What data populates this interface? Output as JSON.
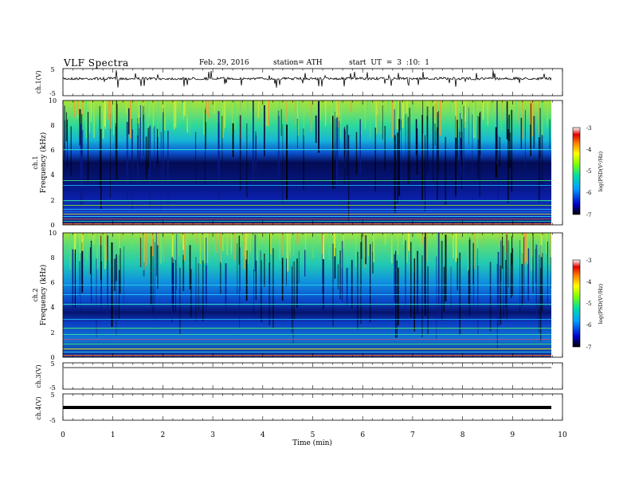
{
  "header": {
    "title": "VLF  Spectra",
    "date": "Feb. 29, 2016",
    "station": "station= ATH",
    "start": "start  UT =  3 :10: 1"
  },
  "panels": {
    "ch1": {
      "ylabel": "ch.1(V)",
      "ticks": [
        "5",
        "-5"
      ]
    },
    "spec1": {
      "ylabel_top": "ch.1",
      "ylabel": "Frequency  (kHz)",
      "ticks": [
        "0",
        "2",
        "4",
        "6",
        "8",
        "10"
      ]
    },
    "spec2": {
      "ylabel_top": "ch.2",
      "ylabel": "Frequency  (kHz)",
      "ticks": [
        "0",
        "2",
        "4",
        "6",
        "8",
        "10"
      ]
    },
    "ch3": {
      "ylabel": "ch.3(V)",
      "ticks": [
        "5",
        "-5"
      ]
    },
    "ch4": {
      "ylabel": "ch.4(V)",
      "ticks": [
        "5",
        "-5"
      ]
    }
  },
  "xaxis": {
    "label": "Time  (min)",
    "ticks": [
      "0",
      "1",
      "2",
      "3",
      "4",
      "5",
      "6",
      "7",
      "8",
      "9",
      "10"
    ]
  },
  "colorbar": {
    "label": "log(PSD(V²/Hz)",
    "ticks": [
      "-3",
      "-4",
      "-5",
      "-6",
      "-7"
    ]
  },
  "chart_data": [
    {
      "type": "line",
      "title": "ch.1(V)",
      "xlabel": "Time  (min)",
      "ylabel": "ch.1(V)",
      "xlim": [
        0,
        10
      ],
      "ylim": [
        -5,
        5
      ],
      "series": [
        {
          "x": [
            0,
            9.8
          ],
          "values": [
            1.3,
            1.3
          ]
        }
      ]
    },
    {
      "type": "heatmap",
      "ylabel": "Frequency  (kHz)",
      "xlabel": "Time  (min)",
      "xlim": [
        0,
        10
      ],
      "ylim": [
        0,
        10
      ],
      "colorbar": {
        "label": "log(PSD(V²/Hz)",
        "range": [
          -7,
          -3
        ]
      }
    },
    {
      "type": "heatmap",
      "ylabel": "Frequency  (kHz)",
      "xlabel": "Time  (min)",
      "xlim": [
        0,
        10
      ],
      "ylim": [
        0,
        10
      ],
      "colorbar": {
        "label": "log(PSD(V²/Hz)",
        "range": [
          -7,
          -3
        ]
      }
    },
    {
      "type": "line",
      "ylabel": "ch.3(V)",
      "xlim": [
        0,
        10
      ],
      "ylim": [
        -5,
        5
      ],
      "series": [
        {
          "x": [
            0,
            9.8
          ],
          "values": [
            3.0,
            3.0
          ]
        }
      ]
    },
    {
      "type": "line",
      "ylabel": "ch.4(V)",
      "xlim": [
        0,
        10
      ],
      "ylim": [
        -5,
        5
      ],
      "series": [
        {
          "x": [
            0,
            9.8
          ],
          "values": [
            0.0,
            0.0
          ]
        }
      ]
    }
  ],
  "colors": {
    "colormap": [
      "#000000",
      "#0000cc",
      "#00a0ff",
      "#00e0a0",
      "#80ff00",
      "#ffff00",
      "#ff8000",
      "#e00000",
      "#ffffff"
    ]
  }
}
